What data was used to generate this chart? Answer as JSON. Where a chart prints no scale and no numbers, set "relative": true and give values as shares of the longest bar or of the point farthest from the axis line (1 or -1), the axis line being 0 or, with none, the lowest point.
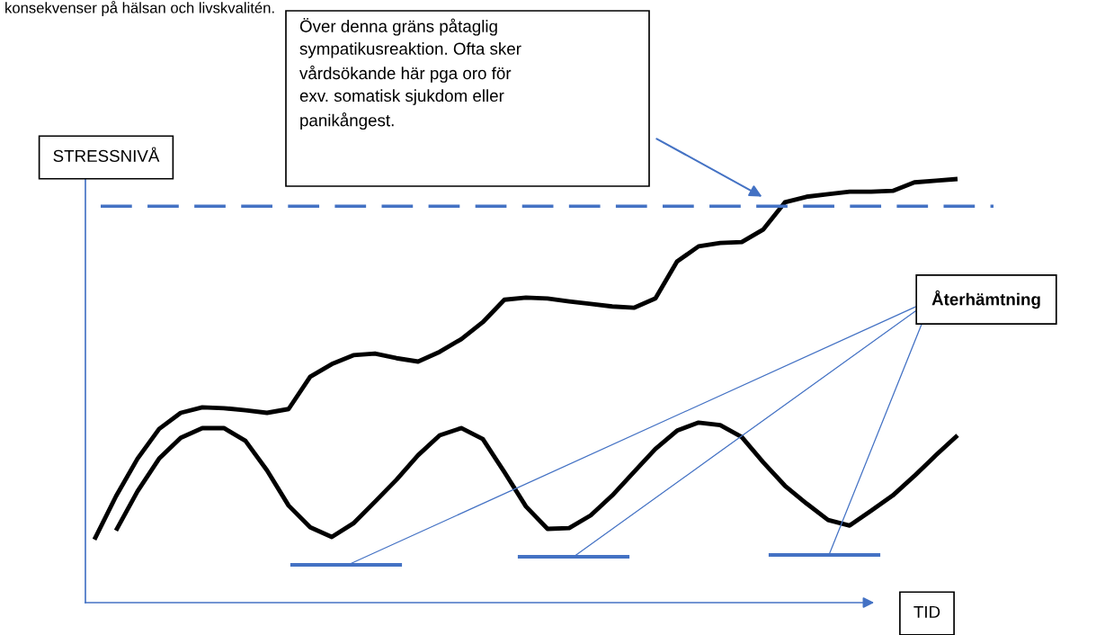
{
  "chart_data": {
    "type": "line",
    "relative": true,
    "xlabel": "TID",
    "ylabel": "STRESSNIVÅ",
    "categories": [
      null,
      null,
      null,
      null,
      null,
      null,
      null,
      null,
      null,
      null,
      null,
      null,
      null,
      null,
      null,
      null,
      null,
      null,
      null,
      null,
      null,
      null,
      null,
      null,
      null,
      null,
      null,
      null,
      null,
      null,
      null,
      null,
      null,
      null,
      null,
      null,
      null,
      null,
      null,
      null,
      null
    ],
    "series": [
      {
        "color": "#000000",
        "values": [
          0.149,
          0.251,
          0.34,
          0.41,
          0.448,
          0.461,
          0.459,
          0.454,
          0.448,
          0.457,
          0.533,
          0.563,
          0.584,
          0.588,
          0.577,
          0.569,
          0.592,
          0.622,
          0.662,
          0.715,
          0.72,
          0.718,
          0.711,
          0.705,
          0.699,
          0.696,
          0.718,
          0.805,
          0.841,
          0.849,
          0.851,
          0.881,
          0.945,
          0.958,
          0.964,
          0.97,
          0.97,
          0.972,
          0.992,
          0.996,
          1.0
        ]
      },
      {
        "color": "#000000",
        "values": [
          null,
          0.17,
          0.263,
          0.34,
          0.389,
          0.412,
          0.412,
          0.382,
          0.312,
          0.229,
          0.178,
          0.155,
          0.187,
          0.238,
          0.29,
          0.348,
          0.395,
          0.412,
          0.386,
          0.308,
          0.227,
          0.174,
          0.176,
          0.206,
          0.253,
          0.308,
          0.363,
          0.406,
          0.425,
          0.419,
          0.391,
          0.331,
          0.276,
          0.234,
          0.195,
          0.182,
          0.217,
          0.253,
          0.299,
          0.348,
          0.395
        ]
      }
    ],
    "ref_lines": [
      {
        "axis": "y",
        "value": 0.936,
        "color": "#4472c4",
        "line_style": "dashed"
      }
    ],
    "annotations": [
      "konsekvenser på hälsan och livskvalitén.",
      "Över denna gräns påtaglig\nsympatikusreaktion. Ofta sker\nvårdsökande här pga oro för\nexv. somatisk sjukdom eller\npanikångest.",
      "Återhämtning"
    ],
    "line_style": "solid",
    "marker": "none"
  }
}
